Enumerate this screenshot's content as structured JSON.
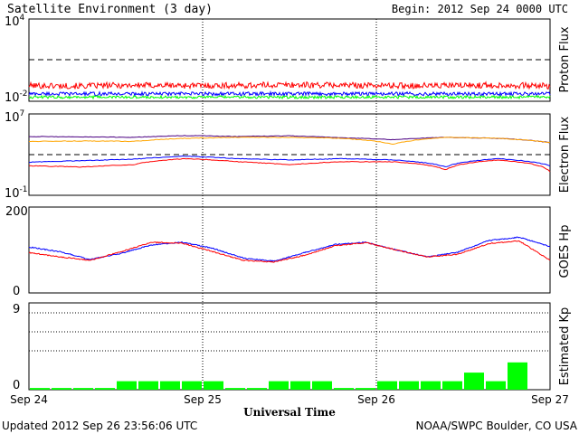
{
  "header": {
    "title": "Satellite Environment (3 day)",
    "begin": "Begin:  2012 Sep 24 0000 UTC"
  },
  "footer": {
    "updated": "Updated 2012 Sep 26 23:56:06 UTC",
    "credit": "NOAA/SWPC Boulder, CO USA"
  },
  "colors": {
    "red": "#ff0000",
    "blue": "#0000ff",
    "green": "#00ff00",
    "orange": "#ffa500",
    "purple": "#4b0082",
    "kp_bar": "#00ff00"
  },
  "chart_data": [
    {
      "type": "line",
      "title": "",
      "ylabel": "Proton Flux",
      "yscale": "log",
      "ylim": [
        "1e-2",
        "1e4"
      ],
      "ytick_labels": {
        "base_top": "10",
        "exp_top": "4",
        "base_bottom": "10",
        "exp_bottom": "-2"
      },
      "xlim": [
        "Sep 24",
        "Sep 27"
      ],
      "threshold": 10,
      "series": [
        {
          "values": [
            0.14,
            0.13,
            0.15,
            0.14,
            0.14,
            0.16,
            0.15,
            0.14,
            0.14,
            0.15,
            0.13
          ]
        },
        {
          "values": [
            0.035,
            0.035,
            0.035,
            0.035,
            0.035,
            0.035,
            0.035,
            0.035,
            0.035,
            0.035,
            0.035
          ]
        },
        {
          "values": [
            0.02,
            0.02,
            0.02,
            0.02,
            0.02,
            0.02,
            0.02,
            0.02,
            0.02,
            0.02,
            0.02
          ]
        }
      ]
    },
    {
      "type": "line",
      "title": "",
      "ylabel": "Electron Flux",
      "yscale": "log",
      "ylim": [
        "1e-1",
        "1e7"
      ],
      "ytick_labels": {
        "base_top": "10",
        "exp_top": "7",
        "base_bottom": "10",
        "exp_bottom": "-1"
      },
      "xlim": [
        "Sep 24",
        "Sep 27"
      ],
      "threshold": 1000,
      "series": [
        {
          "values": [
            60000,
            55000,
            50000,
            75000,
            60000,
            70000,
            45000,
            30000,
            50000,
            40000,
            15000
          ]
        },
        {
          "values": [
            20000,
            22000,
            20000,
            40000,
            50000,
            50000,
            40000,
            10000,
            50000,
            40000,
            15000
          ]
        },
        {
          "values": [
            180,
            250,
            350,
            700,
            400,
            300,
            400,
            300,
            60,
            400,
            80
          ]
        },
        {
          "values": [
            80,
            60,
            100,
            400,
            200,
            100,
            200,
            200,
            30,
            300,
            20
          ]
        }
      ]
    },
    {
      "type": "line",
      "title": "",
      "ylabel": "GOES Hp",
      "ylim": [
        0,
        200
      ],
      "ytick_labels": [
        "200",
        "0"
      ],
      "xlim": [
        "Sep 24",
        "Sep 27"
      ],
      "series": [
        {
          "values": [
            107,
            96,
            78,
            92,
            112,
            118,
            104,
            81,
            74,
            94,
            113,
            118,
            100,
            84,
            95,
            122,
            130,
            108
          ]
        },
        {
          "values": [
            94,
            84,
            76,
            96,
            118,
            116,
            96,
            76,
            72,
            88,
            110,
            117,
            100,
            84,
            90,
            115,
            121,
            76
          ]
        }
      ]
    },
    {
      "type": "bar",
      "title": "",
      "ylabel": "Estimated Kp",
      "xlabel": "Universal Time",
      "ylim": [
        0,
        9
      ],
      "ytick_labels": [
        "9",
        "0"
      ],
      "x_tick_labels": [
        "Sep 24",
        "Sep 25",
        "Sep 26",
        "Sep 27"
      ],
      "values": [
        0.2,
        0.2,
        0.2,
        0.2,
        1,
        1,
        1,
        1,
        1,
        0.2,
        0.2,
        1,
        1,
        1,
        0.2,
        0.2,
        1,
        1,
        1,
        1,
        2,
        1,
        3.2,
        0
      ]
    }
  ]
}
